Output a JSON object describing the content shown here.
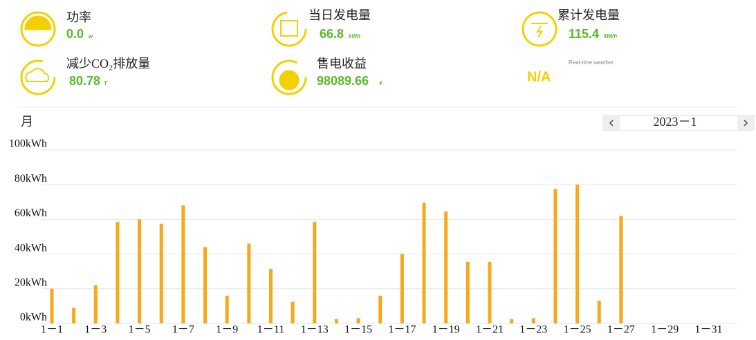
{
  "stats": [
    {
      "label": "功率",
      "value": "0.0",
      "unit": "w"
    },
    {
      "label": "当日发电量",
      "value": "66.8",
      "unit": "kWh"
    },
    {
      "label": "累计发电量",
      "value": "115.4",
      "unit": "MWh"
    },
    {
      "label": "减少CO₂排放量",
      "value": "80.78",
      "unit": "T"
    },
    {
      "label": "售电收益",
      "value": "98089.66",
      "unit": "¥"
    }
  ],
  "weather": {
    "value": "N/A",
    "label": "Real-time weather"
  },
  "period": {
    "label": "月",
    "date": "2023－1"
  },
  "chart_data": {
    "type": "bar",
    "color": "#f7a81b",
    "grid": true,
    "categories": [
      "1－1",
      null,
      "1－3",
      null,
      "1－5",
      null,
      "1－7",
      null,
      "1－9",
      null,
      "1－11",
      null,
      "1－13",
      null,
      "1－15",
      null,
      "1－17",
      null,
      "1－19",
      null,
      "1－21",
      null,
      "1－23",
      null,
      "1－25",
      null,
      "1－27",
      null,
      "1－29",
      null,
      "1－31"
    ],
    "values": [
      20,
      9,
      22,
      58.5,
      60,
      57.5,
      68,
      44,
      16,
      46,
      31.5,
      12.5,
      58.5,
      2.5,
      3,
      16,
      40,
      69.5,
      64.5,
      35.5,
      35.5,
      2.5,
      3,
      77.5,
      80,
      13,
      62,
      0,
      0,
      0,
      0
    ],
    "ylim": [
      0,
      100
    ],
    "yticks": [
      {
        "value": 0,
        "label": "0kWh"
      },
      {
        "value": 20,
        "label": "20kWh"
      },
      {
        "value": 40,
        "label": "40kWh"
      },
      {
        "value": 60,
        "label": "60kWh"
      },
      {
        "value": 80,
        "label": "80kWh"
      },
      {
        "value": 100,
        "label": "100kWh"
      }
    ]
  }
}
